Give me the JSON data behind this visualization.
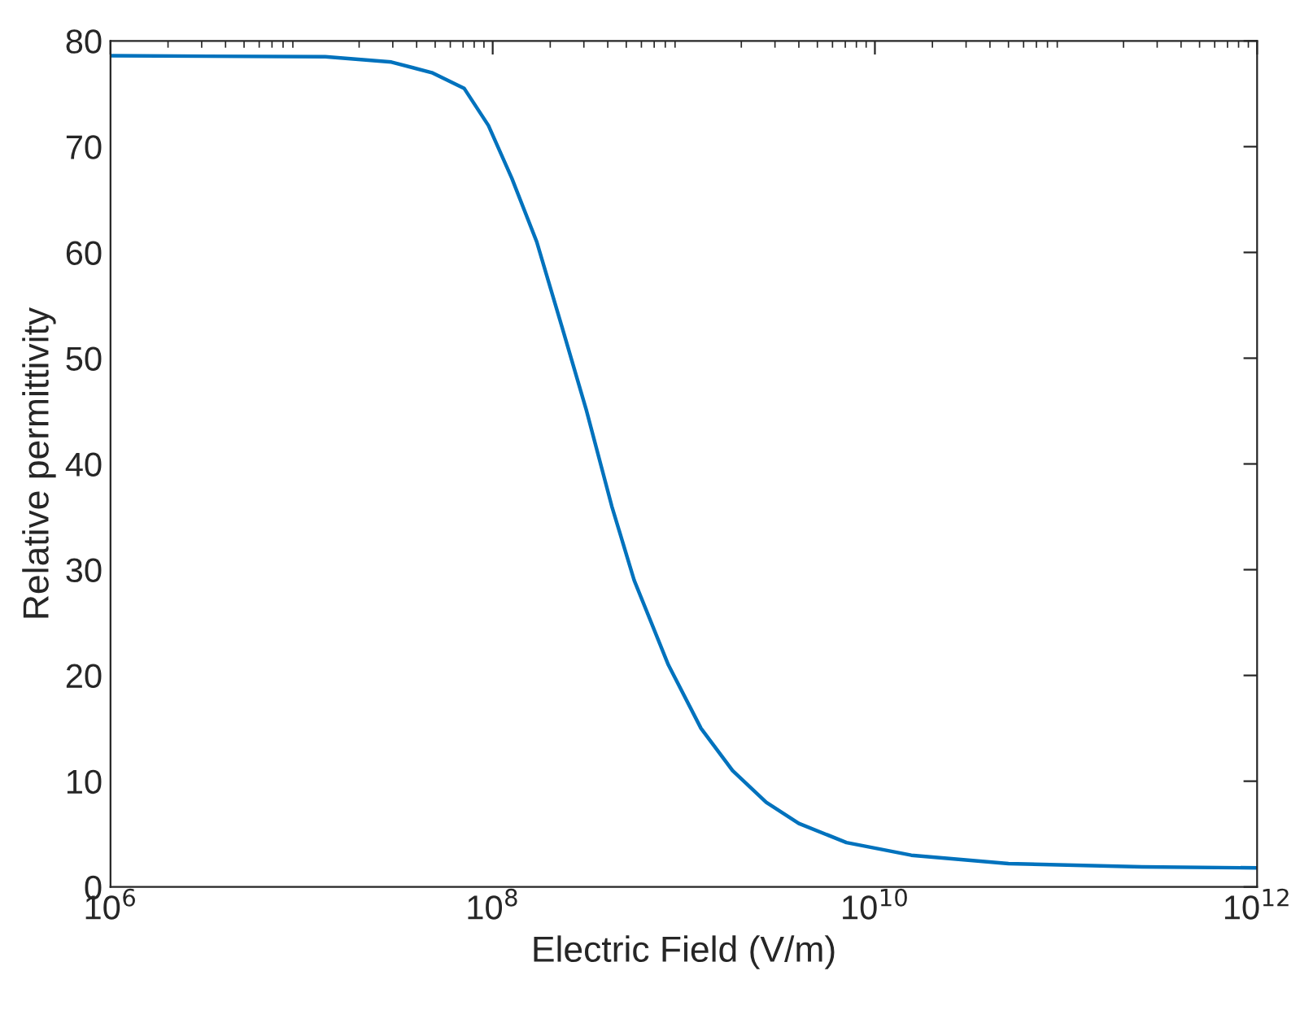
{
  "chart_data": {
    "type": "line",
    "xlabel": "Electric Field (V/m)",
    "ylabel": "Relative permittivity",
    "log": "x",
    "grid": false,
    "xlim": [
      1000000.0,
      1000000000000.0
    ],
    "xticks": [
      {
        "value": 1000000.0,
        "label": "10$^{6}$"
      },
      {
        "value": 100000000.0,
        "label": "10$^{8}$"
      },
      {
        "value": 10000000000.0,
        "label": "10$^{10}$"
      },
      {
        "value": 1000000000000.0,
        "label": "10$^{12}$"
      }
    ],
    "ylim": [
      0,
      80
    ],
    "yticks": [
      0,
      10,
      20,
      30,
      40,
      50,
      60,
      70,
      80
    ],
    "x": [
      1000000.0,
      13300000.0,
      29500000.0,
      48000000.0,
      71000000.0,
      95000000.0,
      126000000.0,
      170000000.0,
      230000000.0,
      310000000.0,
      420000000.0,
      550000000.0,
      830000000.0,
      1230000000.0,
      1800000000.0,
      2700000000.0,
      4000000000.0,
      7100000000.0,
      15500000000.0,
      50000000000.0,
      250000000000.0,
      1000000000000.0
    ],
    "series": [
      {
        "color": "#0072bd",
        "values": [
          78.6,
          78.5,
          78,
          77,
          75.5,
          72,
          67,
          61,
          53,
          45,
          36,
          29,
          21,
          15,
          11,
          8,
          6,
          4.2,
          3,
          2.2,
          1.9,
          1.8
        ]
      }
    ]
  }
}
